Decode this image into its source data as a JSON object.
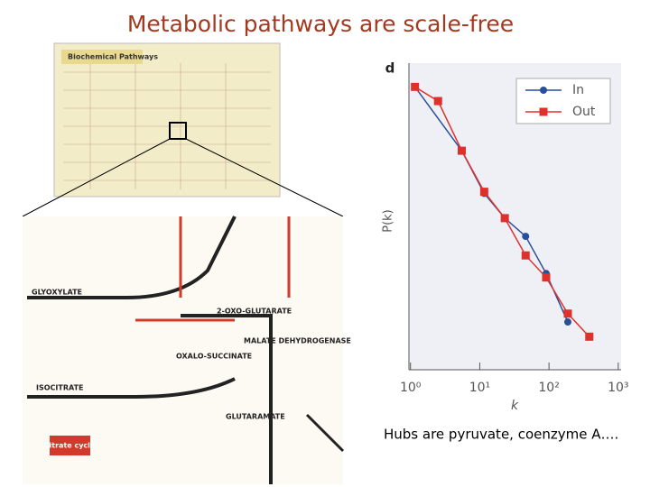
{
  "title": "Metabolic pathways are scale-free",
  "caption": "Hubs are pyruvate, coenzyme A….",
  "pathway_map": {
    "heading": "Biochemical Pathways",
    "labels": [
      "GLYOXYLATE",
      "2-OXO-GLUTARATE",
      "ISOCITRATE",
      "OXALO-SUCCINATE",
      "MALATE DEHYDROGENASE",
      "GLUTARAMATE",
      "Citrate cycle"
    ]
  },
  "chart_data": {
    "type": "line",
    "panel": "d",
    "xlabel": "k",
    "ylabel": "P(k)",
    "xscale": "log",
    "yscale": "log",
    "xlim": [
      0.95,
      1100
    ],
    "ylim": [
      0.0001,
      1
    ],
    "xticks": [
      {
        "value": 1,
        "label": "10⁰"
      },
      {
        "value": 10,
        "label": "10¹"
      },
      {
        "value": 100,
        "label": "10²"
      },
      {
        "value": 1000,
        "label": "10³"
      }
    ],
    "legend": "upper right",
    "series": [
      {
        "name": "In",
        "color": "#2a4f9a",
        "marker": "circle",
        "x": [
          1.16,
          5.5,
          11.6,
          23,
          46,
          91,
          187
        ],
        "values": [
          0.49,
          0.072,
          0.02,
          0.0095,
          0.0055,
          0.0018,
          0.00042
        ]
      },
      {
        "name": "Out",
        "color": "#e0302c",
        "marker": "square",
        "x": [
          1.16,
          2.5,
          5.5,
          11.6,
          23,
          46,
          91,
          187,
          382
        ],
        "values": [
          0.49,
          0.32,
          0.072,
          0.021,
          0.0095,
          0.0031,
          0.0016,
          0.00054,
          0.00027
        ]
      }
    ]
  }
}
